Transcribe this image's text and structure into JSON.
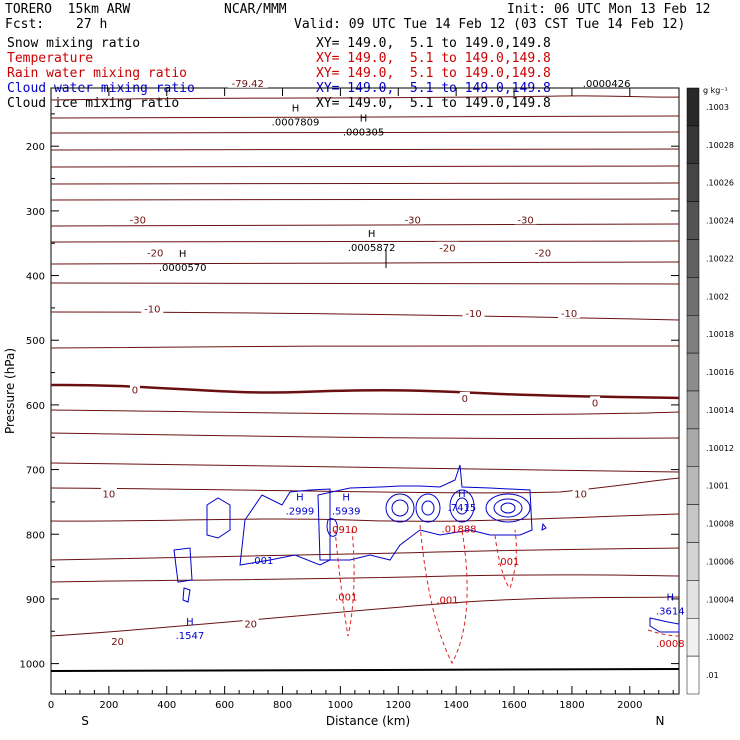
{
  "header": {
    "model": "TORERO  15km ARW",
    "center": "NCAR/MMM",
    "init": "Init: 06 UTC Mon 13 Feb 12",
    "fcst_label": "Fcst:",
    "fcst_value": "27 h",
    "valid": "Valid: 09 UTC Tue 14 Feb 12 (03 CST Tue 14 Feb 12)"
  },
  "fields": [
    {
      "name": "Snow mixing ratio",
      "color": "#000000",
      "xy": "XY= 149.0,  5.1 to 149.0,149.8"
    },
    {
      "name": "Temperature",
      "color": "#cc0000",
      "xy": "XY= 149.0,  5.1 to 149.0,149.8"
    },
    {
      "name": "Rain water mixing ratio",
      "color": "#cc0000",
      "xy": "XY= 149.0,  5.1 to 149.0,149.8"
    },
    {
      "name": "Cloud water mixing ratio",
      "color": "#0000cc",
      "xy": "XY= 149.0,  5.1 to 149.0,149.8"
    },
    {
      "name": "Cloud ice mixing ratio",
      "color": "#000000",
      "xy": "XY= 149.0,  5.1 to 149.0,149.8"
    }
  ],
  "chart_data": {
    "type": "contour",
    "xlabel": "Distance (km)",
    "ylabel": "Pressure (hPa)",
    "x_ticks": [
      0,
      200,
      400,
      600,
      800,
      1000,
      1200,
      1400,
      1600,
      1800,
      2000
    ],
    "y_ticks": [
      200,
      300,
      400,
      500,
      600,
      700,
      800,
      900,
      1000
    ],
    "xlim": [
      0,
      2170
    ],
    "ylim": [
      1047,
      110
    ],
    "direction_left": "S",
    "direction_right": "N",
    "colorbar": {
      "unit": "g kg⁻¹",
      "ticks": [
        ".1003",
        ".10028",
        ".10026",
        ".10024",
        ".10022",
        ".1002",
        ".10018",
        ".10016",
        ".10014",
        ".10012",
        ".1001",
        ".10008",
        ".10006",
        ".10004",
        ".10002",
        ".01"
      ]
    },
    "temperature_isotherms": [
      {
        "label": "-79.42",
        "x": 680,
        "p": 102
      },
      {
        "label": "-30",
        "x": 300,
        "p": 313
      },
      {
        "label": "-30",
        "x": 1250,
        "p": 313
      },
      {
        "label": "-30",
        "x": 1640,
        "p": 313
      },
      {
        "label": "-20",
        "x": 360,
        "p": 364
      },
      {
        "label": "-20",
        "x": 1370,
        "p": 357
      },
      {
        "label": "-20",
        "x": 1700,
        "p": 364
      },
      {
        "label": "-10",
        "x": 350,
        "p": 451
      },
      {
        "label": "-10",
        "x": 1460,
        "p": 458
      },
      {
        "label": "-10",
        "x": 1790,
        "p": 458
      },
      {
        "label": "0",
        "x": 290,
        "p": 576
      },
      {
        "label": "0",
        "x": 1430,
        "p": 589
      },
      {
        "label": "0",
        "x": 1880,
        "p": 596
      },
      {
        "label": "10",
        "x": 200,
        "p": 737
      },
      {
        "label": "10",
        "x": 1830,
        "p": 737
      },
      {
        "label": "20",
        "x": 690,
        "p": 938
      },
      {
        "label": "20",
        "x": 230,
        "p": 965
      }
    ],
    "maxima_labels": [
      {
        "symbol": "H",
        "value": ".0007809",
        "x": 845,
        "p": 162,
        "color": "#000000"
      },
      {
        "symbol": "H",
        "value": ".000305",
        "x": 1080,
        "p": 177,
        "color": "#000000"
      },
      {
        "symbol": "H",
        "value": ".0005872",
        "x": 1108,
        "p": 356,
        "color": "#000000"
      },
      {
        "symbol": "H",
        "value": ".0000570",
        "x": 455,
        "p": 387,
        "color": "#000000"
      },
      {
        "symbol": "",
        "value": ".0000426",
        "x": 1920,
        "p": 102,
        "color": "#000000"
      },
      {
        "symbol": "H",
        "value": ".2999",
        "x": 860,
        "p": 763,
        "color": "#0000cc"
      },
      {
        "symbol": "H",
        "value": ".5939",
        "x": 1020,
        "p": 763,
        "color": "#0000cc"
      },
      {
        "symbol": "H",
        "value": ".7415",
        "x": 1420,
        "p": 758,
        "color": "#0000cc"
      },
      {
        "symbol": "",
        "value": ".001",
        "x": 730,
        "p": 840,
        "color": "#0000cc"
      },
      {
        "symbol": "H",
        "value": ".1547",
        "x": 480,
        "p": 956,
        "color": "#0000cc"
      },
      {
        "symbol": "H",
        "value": ".3614",
        "x": 2140,
        "p": 918,
        "color": "#0000cc"
      },
      {
        "symbol": "",
        "value": ".0910",
        "x": 1010,
        "p": 792,
        "color": "#cc0000"
      },
      {
        "symbol": "",
        "value": ".01888",
        "x": 1410,
        "p": 791,
        "color": "#cc0000"
      },
      {
        "symbol": "",
        "value": ".001",
        "x": 1580,
        "p": 841,
        "color": "#cc0000"
      },
      {
        "symbol": "",
        "value": ".001",
        "x": 1020,
        "p": 896,
        "color": "#cc0000"
      },
      {
        "symbol": "",
        "value": ".001",
        "x": 1370,
        "p": 901,
        "color": "#cc0000"
      },
      {
        "symbol": "",
        "value": ".0008",
        "x": 2140,
        "p": 968,
        "color": "#cc0000"
      }
    ]
  }
}
